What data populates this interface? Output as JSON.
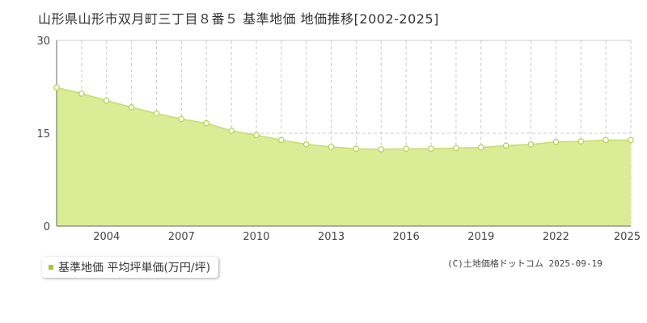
{
  "title": "山形県山形市双月町三丁目８番５ 基準地価 地価推移[2002-2025]",
  "legend_label": "基準地価 平均坪単価(万円/坪)",
  "copyright": "(C)土地価格ドットコム 2025-09-19",
  "colors": {
    "fill": "#dbec96",
    "line": "#c7dc6e",
    "marker_fill": "#ffffff",
    "marker_stroke": "#b5d04e",
    "grid": "#cccccc",
    "legend_swatch": "#a8c934"
  },
  "chart_data": {
    "type": "area",
    "title": "山形県山形市双月町三丁目８番５ 基準地価 地価推移[2002-2025]",
    "xlabel": "",
    "ylabel": "",
    "xlim": [
      2002,
      2025
    ],
    "ylim": [
      0,
      30
    ],
    "yticks": [
      0,
      15,
      30
    ],
    "xticks": [
      2004,
      2007,
      2010,
      2013,
      2016,
      2019,
      2022,
      2025
    ],
    "grid": true,
    "legend_position": "bottom-left",
    "series": [
      {
        "name": "基準地価 平均坪単価(万円/坪)",
        "x": [
          2002,
          2003,
          2004,
          2005,
          2006,
          2007,
          2008,
          2009,
          2010,
          2011,
          2012,
          2013,
          2014,
          2015,
          2016,
          2017,
          2018,
          2019,
          2020,
          2021,
          2022,
          2023,
          2024,
          2025
        ],
        "y": [
          22.4,
          21.4,
          20.3,
          19.2,
          18.2,
          17.3,
          16.6,
          15.4,
          14.7,
          13.9,
          13.2,
          12.8,
          12.5,
          12.4,
          12.5,
          12.5,
          12.6,
          12.7,
          13.0,
          13.2,
          13.6,
          13.7,
          13.9,
          13.9
        ]
      }
    ]
  }
}
